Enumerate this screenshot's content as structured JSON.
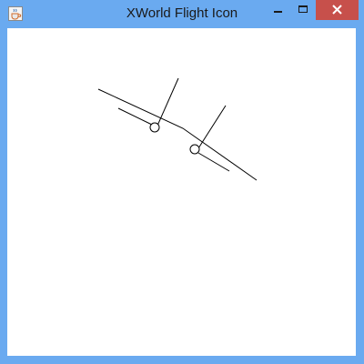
{
  "window": {
    "title": "XWorld Flight Icon",
    "frame_color": "#6aaaf0",
    "close_color": "#c7504b",
    "app_icon": "java-cup-icon"
  },
  "controls": {
    "minimize_icon": "minimize-icon",
    "maximize_icon": "maximize-icon",
    "close_icon": "close-icon"
  },
  "canvas": {
    "background": "#ffffff",
    "drawing": "flight-icon-drawing"
  }
}
